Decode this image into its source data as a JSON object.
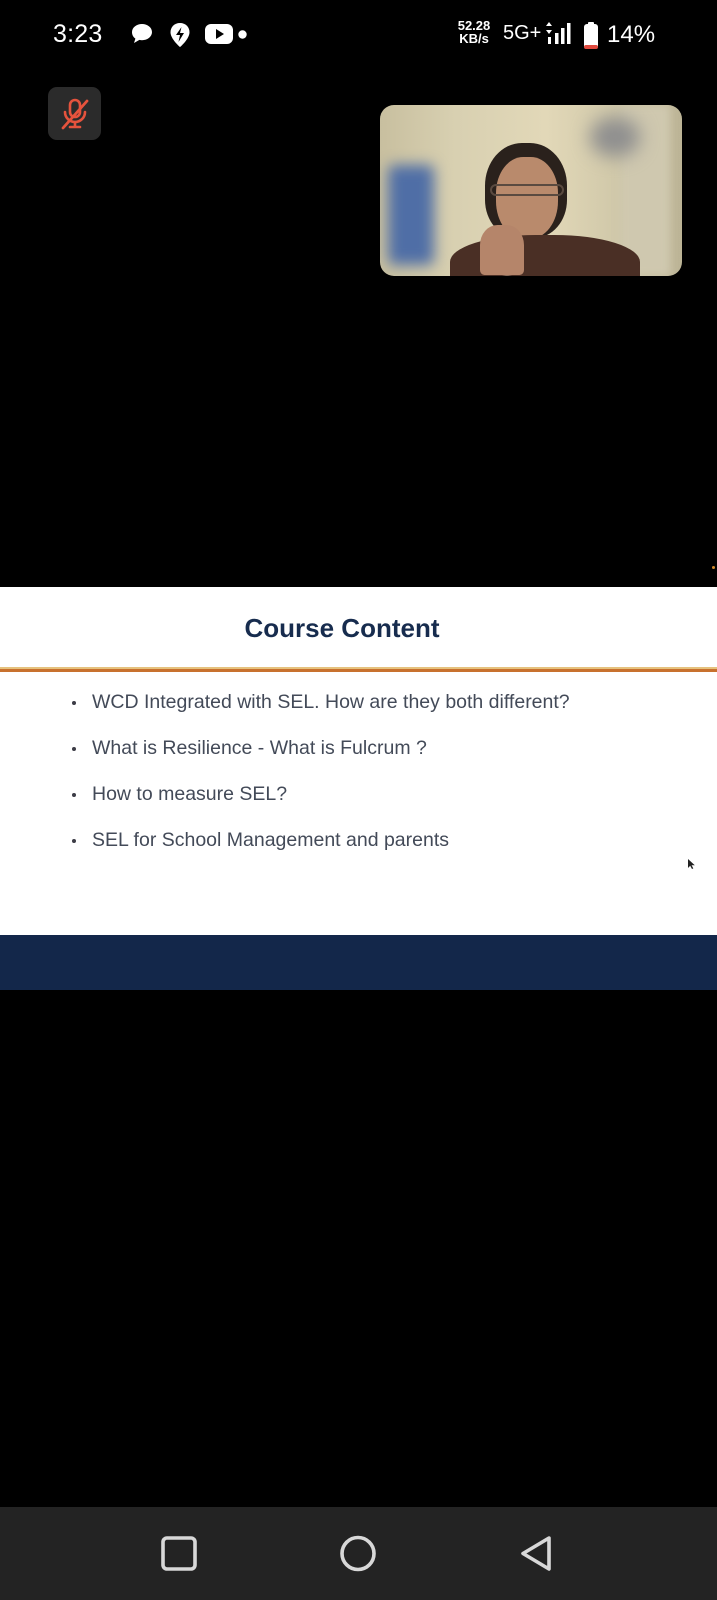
{
  "status_bar": {
    "time": "3:23",
    "notification_icons": [
      "chat-bubble-icon",
      "location-pin-icon",
      "youtube-icon",
      "dot-icon"
    ],
    "network_speed_value": "52.28",
    "network_speed_unit": "KB/s",
    "network_type": "5G+",
    "battery_percent": "14%",
    "battery_level": 0.14,
    "colors": {
      "battery_low": "#e04a3f"
    }
  },
  "call": {
    "mic_state": "muted",
    "mic_icon": "mic-off-icon",
    "colors": {
      "mic_muted": "#e5533d"
    }
  },
  "slide": {
    "title": "Course Content",
    "bullets": [
      "WCD Integrated with SEL. How are they both different?",
      "What is Resilience - What is Fulcrum ?",
      "How to measure SEL?",
      "SEL for School Management and parents"
    ],
    "colors": {
      "title": "#172c4e",
      "footer": "#13274a",
      "rule": "#c8712e"
    }
  },
  "nav_bar": {
    "buttons": [
      "recents-icon",
      "home-icon",
      "back-icon"
    ]
  }
}
